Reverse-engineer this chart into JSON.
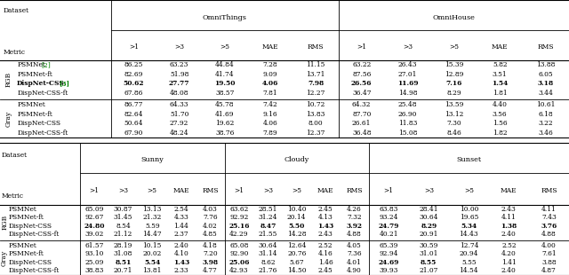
{
  "fig_width": 6.4,
  "fig_height": 3.1,
  "top_table": {
    "section_headers": [
      "OmniThings",
      "OmniHouse"
    ],
    "metrics": [
      ">1",
      ">3",
      ">5",
      "MAE",
      "RMS"
    ],
    "row_groups": [
      {
        "group_label": "RGB",
        "rows": [
          {
            "method": "PSMNet",
            "cite": "[2]",
            "cite_color": "green",
            "data": [
              "86.25",
              "63.23",
              "44.84",
              "7.28",
              "11.15",
              "63.22",
              "26.43",
              "15.39",
              "5.82",
              "13.88"
            ],
            "bold_data": []
          },
          {
            "method": "PSMNet-ft",
            "cite": "",
            "cite_color": null,
            "data": [
              "82.69",
              "51.98",
              "41.74",
              "9.09",
              "13.71",
              "87.56",
              "27.01",
              "12.89",
              "3.51",
              "6.05"
            ],
            "bold_data": []
          },
          {
            "method": "DispNet-CSS",
            "cite": "[3]",
            "cite_color": "green",
            "data": [
              "50.62",
              "27.77",
              "19.50",
              "4.06",
              "7.98",
              "26.56",
              "11.69",
              "7.16",
              "1.54",
              "3.18"
            ],
            "bold_data": [
              0,
              1,
              2,
              3,
              4,
              5,
              6,
              7,
              8,
              9
            ],
            "bold_method": true
          },
          {
            "method": "DispNet-CSS-ft",
            "cite": "",
            "cite_color": null,
            "data": [
              "67.86",
              "48.08",
              "38.57",
              "7.81",
              "12.27",
              "36.47",
              "14.98",
              "8.29",
              "1.81",
              "3.44"
            ],
            "bold_data": []
          }
        ]
      },
      {
        "group_label": "Gray",
        "rows": [
          {
            "method": "PSMNet",
            "cite": "",
            "cite_color": null,
            "data": [
              "86.77",
              "64.33",
              "45.78",
              "7.42",
              "10.72",
              "64.32",
              "25.48",
              "13.59",
              "4.40",
              "10.61"
            ],
            "bold_data": []
          },
          {
            "method": "PSMNet-ft",
            "cite": "",
            "cite_color": null,
            "data": [
              "82.64",
              "51.70",
              "41.69",
              "9.16",
              "13.83",
              "87.70",
              "26.90",
              "13.12",
              "3.56",
              "6.18"
            ],
            "bold_data": []
          },
          {
            "method": "DispNet-CSS",
            "cite": "",
            "cite_color": null,
            "data": [
              "50.64",
              "27.92",
              "19.62",
              "4.06",
              "8.00",
              "26.61",
              "11.83",
              "7.30",
              "1.56",
              "3.22"
            ],
            "bold_data": []
          },
          {
            "method": "DispNet-CSS-ft",
            "cite": "",
            "cite_color": null,
            "data": [
              "67.90",
              "48.24",
              "38.76",
              "7.89",
              "12.37",
              "36.48",
              "15.08",
              "8.46",
              "1.82",
              "3.46"
            ],
            "bold_data": []
          }
        ]
      }
    ]
  },
  "bottom_table": {
    "section_headers": [
      "Sunny",
      "Cloudy",
      "Sunset"
    ],
    "metrics": [
      ">1",
      ">3",
      ">5",
      "MAE",
      "RMS"
    ],
    "row_groups": [
      {
        "group_label": "RGB",
        "rows": [
          {
            "method": "PSMNet",
            "cite": "",
            "cite_color": null,
            "data": [
              "65.09",
              "30.87",
              "13.13",
              "2.54",
              "4.03",
              "63.62",
              "28.51",
              "10.40",
              "2.45",
              "4.26",
              "63.83",
              "28.41",
              "10.00",
              "2.43",
              "4.11"
            ],
            "bold_data": []
          },
          {
            "method": "PSMNet-ft",
            "cite": "",
            "cite_color": null,
            "data": [
              "92.67",
              "31.45",
              "21.32",
              "4.33",
              "7.76",
              "92.92",
              "31.24",
              "20.14",
              "4.13",
              "7.32",
              "93.24",
              "30.64",
              "19.65",
              "4.11",
              "7.43"
            ],
            "bold_data": []
          },
          {
            "method": "DispNet-CSS",
            "cite": "",
            "cite_color": null,
            "data": [
              "24.80",
              "8.54",
              "5.59",
              "1.44",
              "4.02",
              "25.16",
              "8.47",
              "5.50",
              "1.43",
              "3.92",
              "24.79",
              "8.29",
              "5.34",
              "1.38",
              "3.76"
            ],
            "bold_data": [
              0,
              5,
              6,
              7,
              8,
              9,
              10,
              11,
              12,
              13,
              14
            ],
            "bold_method": false
          },
          {
            "method": "DispNet-CSS-ft",
            "cite": "",
            "cite_color": null,
            "data": [
              "39.02",
              "21.12",
              "14.47",
              "2.37",
              "4.85",
              "42.29",
              "21.55",
              "14.28",
              "2.43",
              "4.88",
              "40.21",
              "20.91",
              "14.43",
              "2.40",
              "4.88"
            ],
            "bold_data": []
          }
        ]
      },
      {
        "group_label": "Gray",
        "rows": [
          {
            "method": "PSMNet",
            "cite": "",
            "cite_color": null,
            "data": [
              "61.57",
              "28.19",
              "10.15",
              "2.40",
              "4.18",
              "65.08",
              "30.64",
              "12.64",
              "2.52",
              "4.05",
              "65.39",
              "30.59",
              "12.74",
              "2.52",
              "4.00"
            ],
            "bold_data": []
          },
          {
            "method": "PSMNet-ft",
            "cite": "",
            "cite_color": null,
            "data": [
              "93.10",
              "31.08",
              "20.02",
              "4.10",
              "7.20",
              "92.90",
              "31.14",
              "20.76",
              "4.16",
              "7.36",
              "92.94",
              "31.01",
              "20.94",
              "4.20",
              "7.61"
            ],
            "bold_data": []
          },
          {
            "method": "DispNet-CSS",
            "cite": "",
            "cite_color": null,
            "data": [
              "25.09",
              "8.51",
              "5.54",
              "1.43",
              "3.98",
              "25.06",
              "8.62",
              "5.67",
              "1.46",
              "4.01",
              "24.69",
              "8.55",
              "5.55",
              "1.41",
              "3.88"
            ],
            "bold_data": [
              1,
              2,
              3,
              4,
              5,
              10,
              11
            ],
            "bold_method": false
          },
          {
            "method": "DispNet-CSS-ft",
            "cite": "",
            "cite_color": null,
            "data": [
              "38.83",
              "20.71",
              "13.81",
              "2.33",
              "4.77",
              "42.93",
              "21.76",
              "14.50",
              "2.45",
              "4.90",
              "39.93",
              "21.07",
              "14.54",
              "2.40",
              "4.87"
            ],
            "bold_data": []
          }
        ]
      }
    ]
  }
}
